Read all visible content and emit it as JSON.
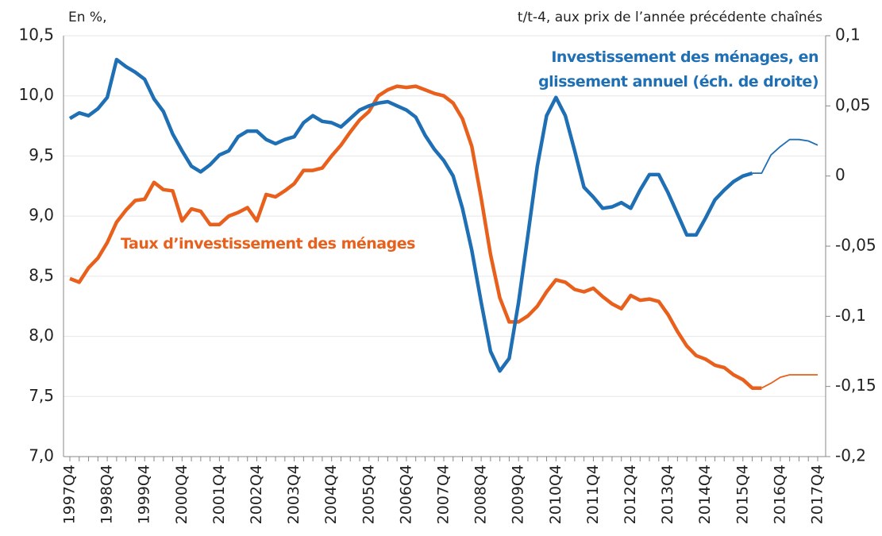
{
  "chart_data": {
    "type": "line",
    "y_label": "En %,",
    "y2_label": "t/t-4, aux prix de l’année précédente chaînés",
    "categories": [
      "1997Q4",
      null,
      null,
      null,
      "1998Q4",
      null,
      null,
      null,
      "1999Q4",
      null,
      null,
      null,
      "2000Q4",
      null,
      null,
      null,
      "2001Q4",
      null,
      null,
      null,
      "2002Q4",
      null,
      null,
      null,
      "2003Q4",
      null,
      null,
      null,
      "2004Q4",
      null,
      null,
      null,
      "2005Q4",
      null,
      null,
      null,
      "2006Q4",
      null,
      null,
      null,
      "2007Q4",
      null,
      null,
      null,
      "2008Q4",
      null,
      null,
      null,
      "2009Q4",
      null,
      null,
      null,
      "2010Q4",
      null,
      null,
      null,
      "2011Q4",
      null,
      null,
      null,
      "2012Q4",
      null,
      null,
      null,
      "2013Q4",
      null,
      null,
      null,
      "2014Q4",
      null,
      null,
      null,
      "2015Q4",
      null,
      null,
      null,
      "2016Q4",
      null,
      null,
      null,
      "2017Q4"
    ],
    "series": [
      {
        "name": "Taux d’investissement des ménages",
        "color": "#e8601c",
        "forecast_start": 74,
        "values": [
          8.48,
          8.45,
          8.57,
          8.65,
          8.78,
          8.95,
          9.05,
          9.13,
          9.14,
          9.28,
          9.22,
          9.21,
          8.96,
          9.06,
          9.04,
          8.93,
          8.93,
          9.0,
          9.03,
          9.07,
          8.96,
          9.18,
          9.16,
          9.21,
          9.27,
          9.38,
          9.38,
          9.4,
          9.5,
          9.59,
          9.7,
          9.8,
          9.87,
          10.0,
          10.05,
          10.08,
          10.07,
          10.08,
          10.05,
          10.02,
          10.0,
          9.94,
          9.81,
          9.58,
          9.15,
          8.68,
          8.32,
          8.12,
          8.12,
          8.17,
          8.25,
          8.37,
          8.47,
          8.45,
          8.39,
          8.37,
          8.4,
          8.33,
          8.27,
          8.23,
          8.34,
          8.3,
          8.31,
          8.29,
          8.18,
          8.04,
          7.92,
          7.84,
          7.81,
          7.76,
          7.74,
          7.68,
          7.64,
          7.57,
          7.57,
          7.61,
          7.66,
          7.68,
          7.68,
          7.68,
          7.68
        ]
      },
      {
        "name": "Investissement des ménages, en glissement annuel (éch. de droite)",
        "color": "#1f6fb5",
        "axis": "y2",
        "forecast_start": 73,
        "values": [
          0.041,
          0.045,
          0.043,
          0.048,
          0.056,
          0.083,
          0.078,
          0.074,
          0.069,
          0.055,
          0.046,
          0.03,
          0.018,
          0.007,
          0.003,
          0.008,
          0.015,
          0.018,
          0.028,
          0.032,
          0.032,
          0.026,
          0.023,
          0.026,
          0.028,
          0.038,
          0.043,
          0.039,
          0.038,
          0.035,
          0.041,
          0.047,
          0.05,
          0.052,
          0.053,
          0.05,
          0.047,
          0.042,
          0.029,
          0.019,
          0.011,
          0.0,
          -0.023,
          -0.053,
          -0.09,
          -0.125,
          -0.139,
          -0.13,
          -0.09,
          -0.042,
          0.007,
          0.043,
          0.056,
          0.043,
          0.018,
          -0.008,
          -0.015,
          -0.023,
          -0.022,
          -0.019,
          -0.023,
          -0.01,
          0.001,
          0.001,
          -0.012,
          -0.027,
          -0.042,
          -0.042,
          -0.03,
          -0.017,
          -0.01,
          -0.004,
          0.0,
          0.002,
          0.002,
          0.015,
          0.021,
          0.026,
          0.026,
          0.025,
          0.022
        ]
      }
    ],
    "ylim": [
      7.0,
      10.5
    ],
    "yticks": [
      {
        "value": 7.0,
        "label": "7,0"
      },
      {
        "value": 7.5,
        "label": "7,5"
      },
      {
        "value": 8.0,
        "label": "8,0"
      },
      {
        "value": 8.5,
        "label": "8,5"
      },
      {
        "value": 9.0,
        "label": "9,0"
      },
      {
        "value": 9.5,
        "label": "9,5"
      },
      {
        "value": 10.0,
        "label": "10,0"
      },
      {
        "value": 10.5,
        "label": "10,5"
      }
    ],
    "y2lim": [
      -0.2,
      0.1
    ],
    "y2ticks": [
      {
        "value": -0.2,
        "label": "-0,2"
      },
      {
        "value": -0.15,
        "label": "-0,15"
      },
      {
        "value": -0.1,
        "label": "-0,1"
      },
      {
        "value": -0.05,
        "label": "-0,05"
      },
      0,
      {
        "value": 0.05,
        "label": "0,05"
      },
      {
        "value": 0.1,
        "label": "0,1"
      }
    ],
    "grid": true
  }
}
